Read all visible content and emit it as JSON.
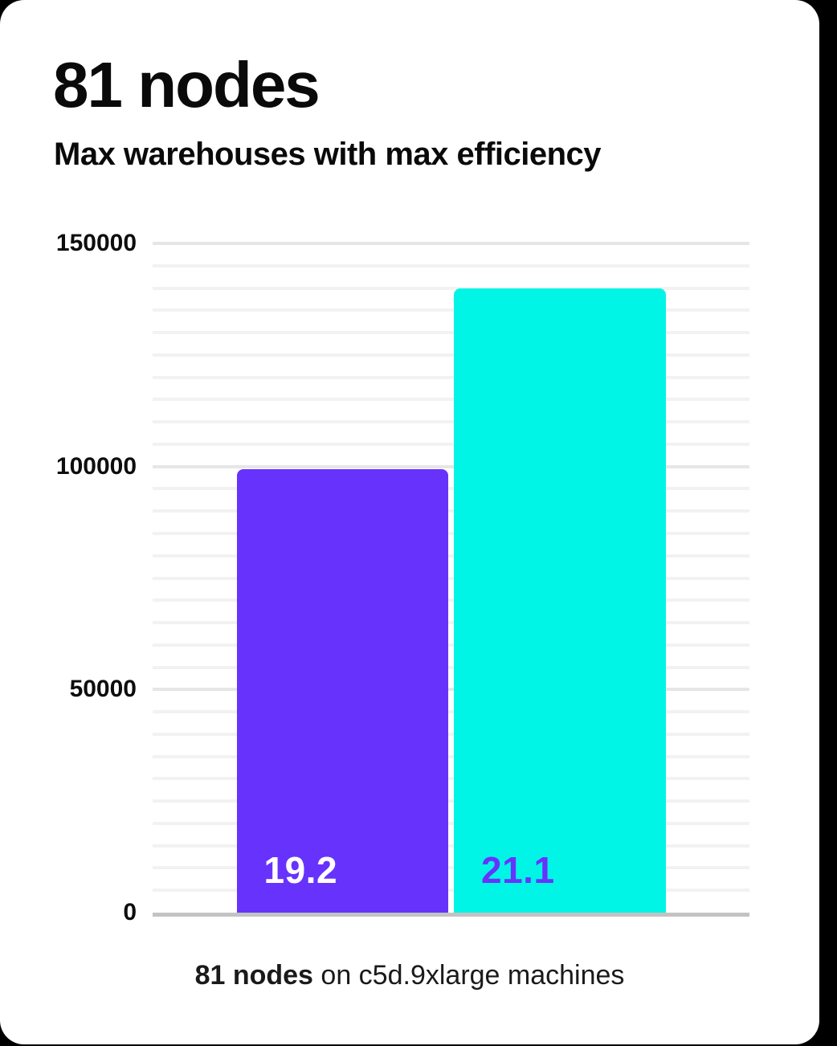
{
  "header": {
    "title": "81 nodes",
    "subtitle": "Max warehouses with max efficiency"
  },
  "caption": {
    "bold": "81 nodes",
    "rest": " on c5d.9xlarge machines"
  },
  "colors": {
    "background": "#000000",
    "card": "#ffffff",
    "purple": "#6733fc",
    "cyan": "#00f5e6",
    "grid_minor": "#f2f2f2",
    "grid_major": "#e6e6e6",
    "axis_line": "#c3c3c3",
    "text": "#0a0a0a"
  },
  "chart_data": {
    "type": "bar",
    "title": "81 nodes",
    "subtitle": "Max warehouses with max efficiency",
    "caption": "81 nodes on c5d.9xlarge machines",
    "xlabel": "",
    "ylabel": "",
    "ylim": [
      0,
      150000
    ],
    "yticks": [
      0,
      50000,
      100000,
      150000
    ],
    "minor_grid_step": 5000,
    "major_grid_step": 50000,
    "grid": true,
    "legend": false,
    "series": [
      {
        "name": "19.2",
        "value": 99400,
        "bar_label": "19.2",
        "color": "#6733fc",
        "label_color": "#ffffff"
      },
      {
        "name": "21.1",
        "value": 140000,
        "bar_label": "21.1",
        "color": "#00f5e6",
        "label_color": "#6733fc"
      }
    ]
  }
}
